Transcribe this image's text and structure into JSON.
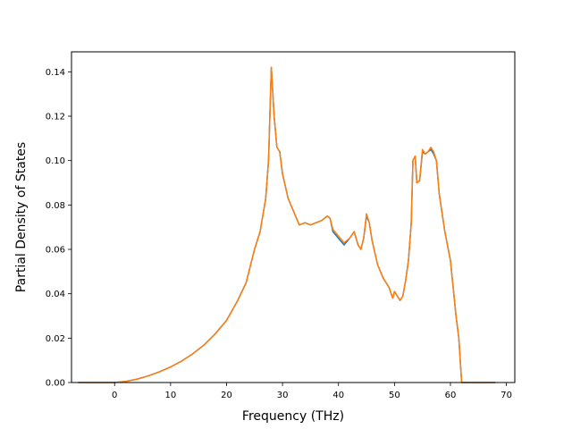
{
  "chart_data": {
    "type": "line",
    "title": "",
    "xlabel": "Frequency (THz)",
    "ylabel": "Partial Density of States",
    "xlim": [
      -7.7,
      71.5
    ],
    "ylim": [
      0,
      0.149
    ],
    "xticks": [
      0,
      10,
      20,
      30,
      40,
      50,
      60,
      70
    ],
    "yticks": [
      0.0,
      0.02,
      0.04,
      0.06,
      0.08,
      0.1,
      0.12,
      0.14
    ],
    "xtick_labels": [
      "0",
      "10",
      "20",
      "30",
      "40",
      "50",
      "60",
      "70"
    ],
    "ytick_labels": [
      "0.00",
      "0.02",
      "0.04",
      "0.06",
      "0.08",
      "0.10",
      "0.12",
      "0.14"
    ],
    "grid": false,
    "legend": "none",
    "series": [
      {
        "color": "#1f77b4",
        "x": [
          -6.5,
          0,
          2,
          4,
          6,
          8,
          10,
          12,
          14,
          16,
          18,
          20,
          22,
          23.5,
          25,
          26,
          27,
          27.5,
          28,
          28.5,
          29,
          29.5,
          30,
          31,
          32,
          33,
          34,
          35,
          36,
          37,
          38,
          38.5,
          39,
          40,
          41,
          42,
          42.8,
          43.5,
          44,
          44.5,
          45,
          45.5,
          46,
          47,
          48,
          49,
          49.7,
          50,
          50.5,
          51,
          51.5,
          52,
          52.5,
          53,
          53.3,
          53.7,
          54,
          54.5,
          55,
          55.5,
          56,
          56.5,
          57,
          57.5,
          58,
          59,
          60,
          61,
          61.5,
          62,
          68
        ],
        "y": [
          0,
          0,
          0.0005,
          0.0015,
          0.003,
          0.0048,
          0.007,
          0.0097,
          0.013,
          0.017,
          0.022,
          0.028,
          0.037,
          0.045,
          0.06,
          0.068,
          0.083,
          0.1,
          0.142,
          0.12,
          0.106,
          0.104,
          0.094,
          0.083,
          0.077,
          0.071,
          0.072,
          0.071,
          0.072,
          0.073,
          0.075,
          0.074,
          0.068,
          0.065,
          0.062,
          0.065,
          0.068,
          0.062,
          0.06,
          0.065,
          0.075,
          0.072,
          0.064,
          0.053,
          0.047,
          0.043,
          0.038,
          0.041,
          0.039,
          0.037,
          0.039,
          0.046,
          0.055,
          0.072,
          0.1,
          0.102,
          0.09,
          0.091,
          0.104,
          0.103,
          0.104,
          0.105,
          0.103,
          0.1,
          0.085,
          0.068,
          0.055,
          0.03,
          0.02,
          0,
          0
        ]
      },
      {
        "color": "#ff7f0e",
        "x": [
          -6.5,
          0,
          2,
          4,
          6,
          8,
          10,
          12,
          14,
          16,
          18,
          20,
          22,
          23.5,
          25,
          26,
          27,
          27.5,
          28,
          28.5,
          29,
          29.5,
          30,
          31,
          32,
          33,
          34,
          35,
          36,
          37,
          38,
          38.5,
          39,
          40,
          41,
          42,
          42.8,
          43.5,
          44,
          44.5,
          45,
          45.5,
          46,
          47,
          48,
          49,
          49.7,
          50,
          50.5,
          51,
          51.5,
          52,
          52.5,
          53,
          53.3,
          53.7,
          54,
          54.5,
          55,
          55.5,
          56,
          56.5,
          57,
          57.5,
          58,
          59,
          60,
          61,
          61.5,
          62,
          68
        ],
        "y": [
          0,
          0,
          0.0005,
          0.0015,
          0.003,
          0.0048,
          0.007,
          0.0097,
          0.013,
          0.017,
          0.022,
          0.028,
          0.037,
          0.045,
          0.06,
          0.068,
          0.083,
          0.1,
          0.142,
          0.12,
          0.106,
          0.104,
          0.094,
          0.083,
          0.077,
          0.071,
          0.072,
          0.071,
          0.072,
          0.073,
          0.075,
          0.074,
          0.069,
          0.066,
          0.063,
          0.065,
          0.068,
          0.062,
          0.06,
          0.065,
          0.076,
          0.072,
          0.064,
          0.053,
          0.047,
          0.043,
          0.038,
          0.041,
          0.039,
          0.037,
          0.039,
          0.046,
          0.055,
          0.072,
          0.1,
          0.102,
          0.09,
          0.091,
          0.105,
          0.103,
          0.104,
          0.106,
          0.104,
          0.1,
          0.085,
          0.068,
          0.055,
          0.03,
          0.02,
          0,
          0
        ]
      }
    ]
  }
}
